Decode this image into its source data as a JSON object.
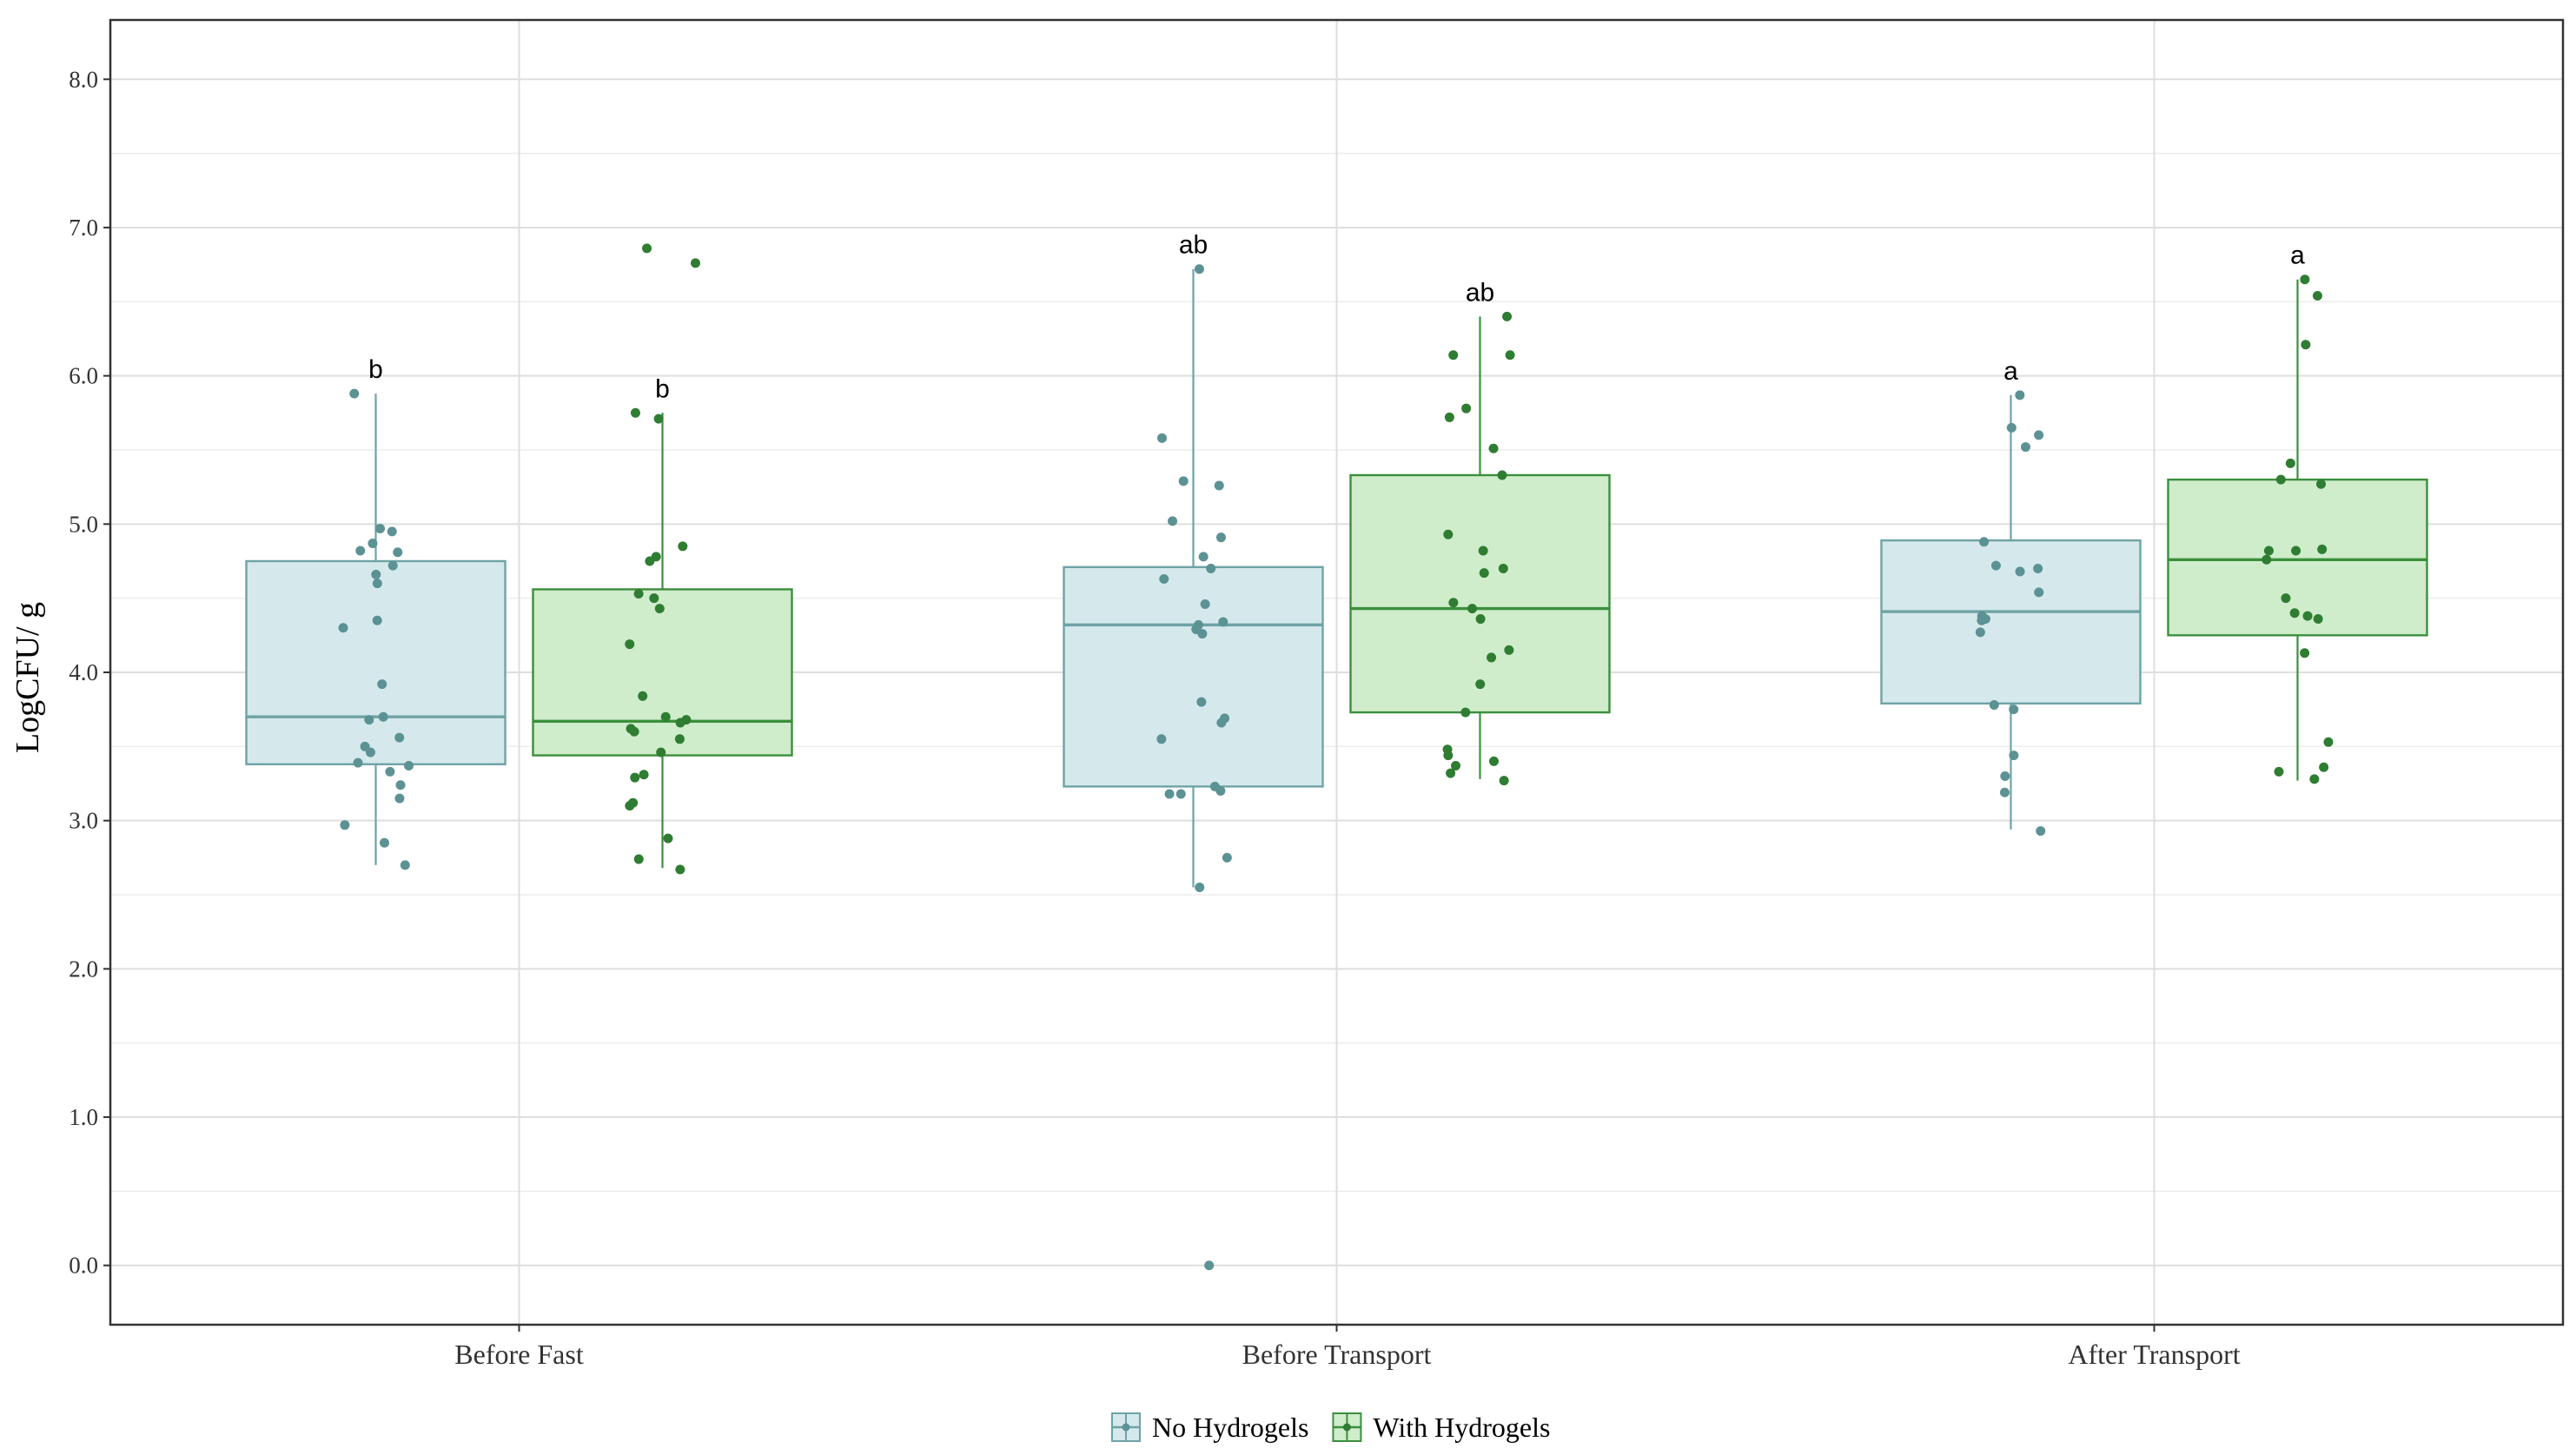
{
  "chart_data": {
    "type": "box",
    "title": "",
    "xlabel": "",
    "ylabel": "LogCFU/ g",
    "ylim": [
      -0.4,
      8.4
    ],
    "yticks": [
      "0.0",
      "1.0",
      "2.0",
      "3.0",
      "4.0",
      "5.0",
      "6.0",
      "7.0",
      "8.0"
    ],
    "categories": [
      "Before Fast",
      "Before Transport",
      "After Transport"
    ],
    "grid": true,
    "legend_position": "bottom",
    "colors": {
      "No Hydrogels": {
        "fill": "#d5e9ec",
        "stroke": "#6fa3a6",
        "point": "#5c9294"
      },
      "With Hydrogels": {
        "fill": "#cfeccb",
        "stroke": "#3b8f3c",
        "point": "#2f7d32"
      }
    },
    "series": [
      {
        "name": "No Hydrogels",
        "boxes": [
          {
            "category": "Before Fast",
            "whisker_low": 2.7,
            "q1": 3.38,
            "median": 3.7,
            "q3": 4.75,
            "whisker_high": 5.88,
            "label": "b",
            "points": [
              5.88,
              4.95,
              4.97,
              4.87,
              4.82,
              4.81,
              4.72,
              4.66,
              4.6,
              4.35,
              4.3,
              3.92,
              3.7,
              3.68,
              3.56,
              3.5,
              3.46,
              3.39,
              3.37,
              3.33,
              3.24,
              3.15,
              2.97,
              2.85,
              2.7
            ]
          },
          {
            "category": "Before Transport",
            "whisker_low": 2.55,
            "q1": 3.23,
            "median": 4.32,
            "q3": 4.71,
            "whisker_high": 6.72,
            "label": "ab",
            "points": [
              6.72,
              5.58,
              5.29,
              5.26,
              5.02,
              4.91,
              4.78,
              4.7,
              4.63,
              4.46,
              4.34,
              4.32,
              4.29,
              4.26,
              3.8,
              3.69,
              3.66,
              3.55,
              3.23,
              3.2,
              3.18,
              3.18,
              2.75,
              2.55,
              0.0
            ]
          },
          {
            "category": "After Transport",
            "whisker_low": 2.94,
            "q1": 3.79,
            "median": 4.41,
            "q3": 4.89,
            "whisker_high": 5.87,
            "label": "a",
            "points": [
              5.87,
              5.65,
              5.6,
              5.52,
              4.88,
              4.72,
              4.7,
              4.68,
              4.54,
              4.38,
              4.36,
              4.35,
              4.27,
              3.78,
              3.75,
              3.44,
              3.3,
              3.19,
              2.93
            ]
          }
        ]
      },
      {
        "name": "With Hydrogels",
        "boxes": [
          {
            "category": "Before Fast",
            "whisker_low": 2.68,
            "q1": 3.44,
            "median": 3.67,
            "q3": 4.56,
            "whisker_high": 5.75,
            "label": "b",
            "points": [
              6.86,
              6.76,
              5.75,
              5.71,
              4.85,
              4.78,
              4.75,
              4.53,
              4.5,
              4.43,
              4.19,
              3.84,
              3.7,
              3.68,
              3.66,
              3.62,
              3.6,
              3.55,
              3.46,
              3.31,
              3.29,
              3.12,
              3.1,
              2.88,
              2.74,
              2.67
            ]
          },
          {
            "category": "Before Transport",
            "whisker_low": 3.28,
            "q1": 3.73,
            "median": 4.43,
            "q3": 5.33,
            "whisker_high": 6.4,
            "label": "ab",
            "points": [
              6.4,
              6.14,
              6.14,
              5.78,
              5.72,
              5.51,
              5.33,
              4.93,
              4.82,
              4.7,
              4.67,
              4.47,
              4.43,
              4.36,
              4.15,
              4.1,
              3.92,
              3.73,
              3.48,
              3.44,
              3.4,
              3.37,
              3.32,
              3.27
            ]
          },
          {
            "category": "After Transport",
            "whisker_low": 3.27,
            "q1": 4.25,
            "median": 4.76,
            "q3": 5.3,
            "whisker_high": 6.65,
            "label": "a",
            "points": [
              6.65,
              6.54,
              6.21,
              5.41,
              5.3,
              5.27,
              4.83,
              4.82,
              4.82,
              4.76,
              4.5,
              4.4,
              4.38,
              4.36,
              4.13,
              3.53,
              3.36,
              3.33,
              3.28
            ]
          }
        ]
      }
    ]
  }
}
